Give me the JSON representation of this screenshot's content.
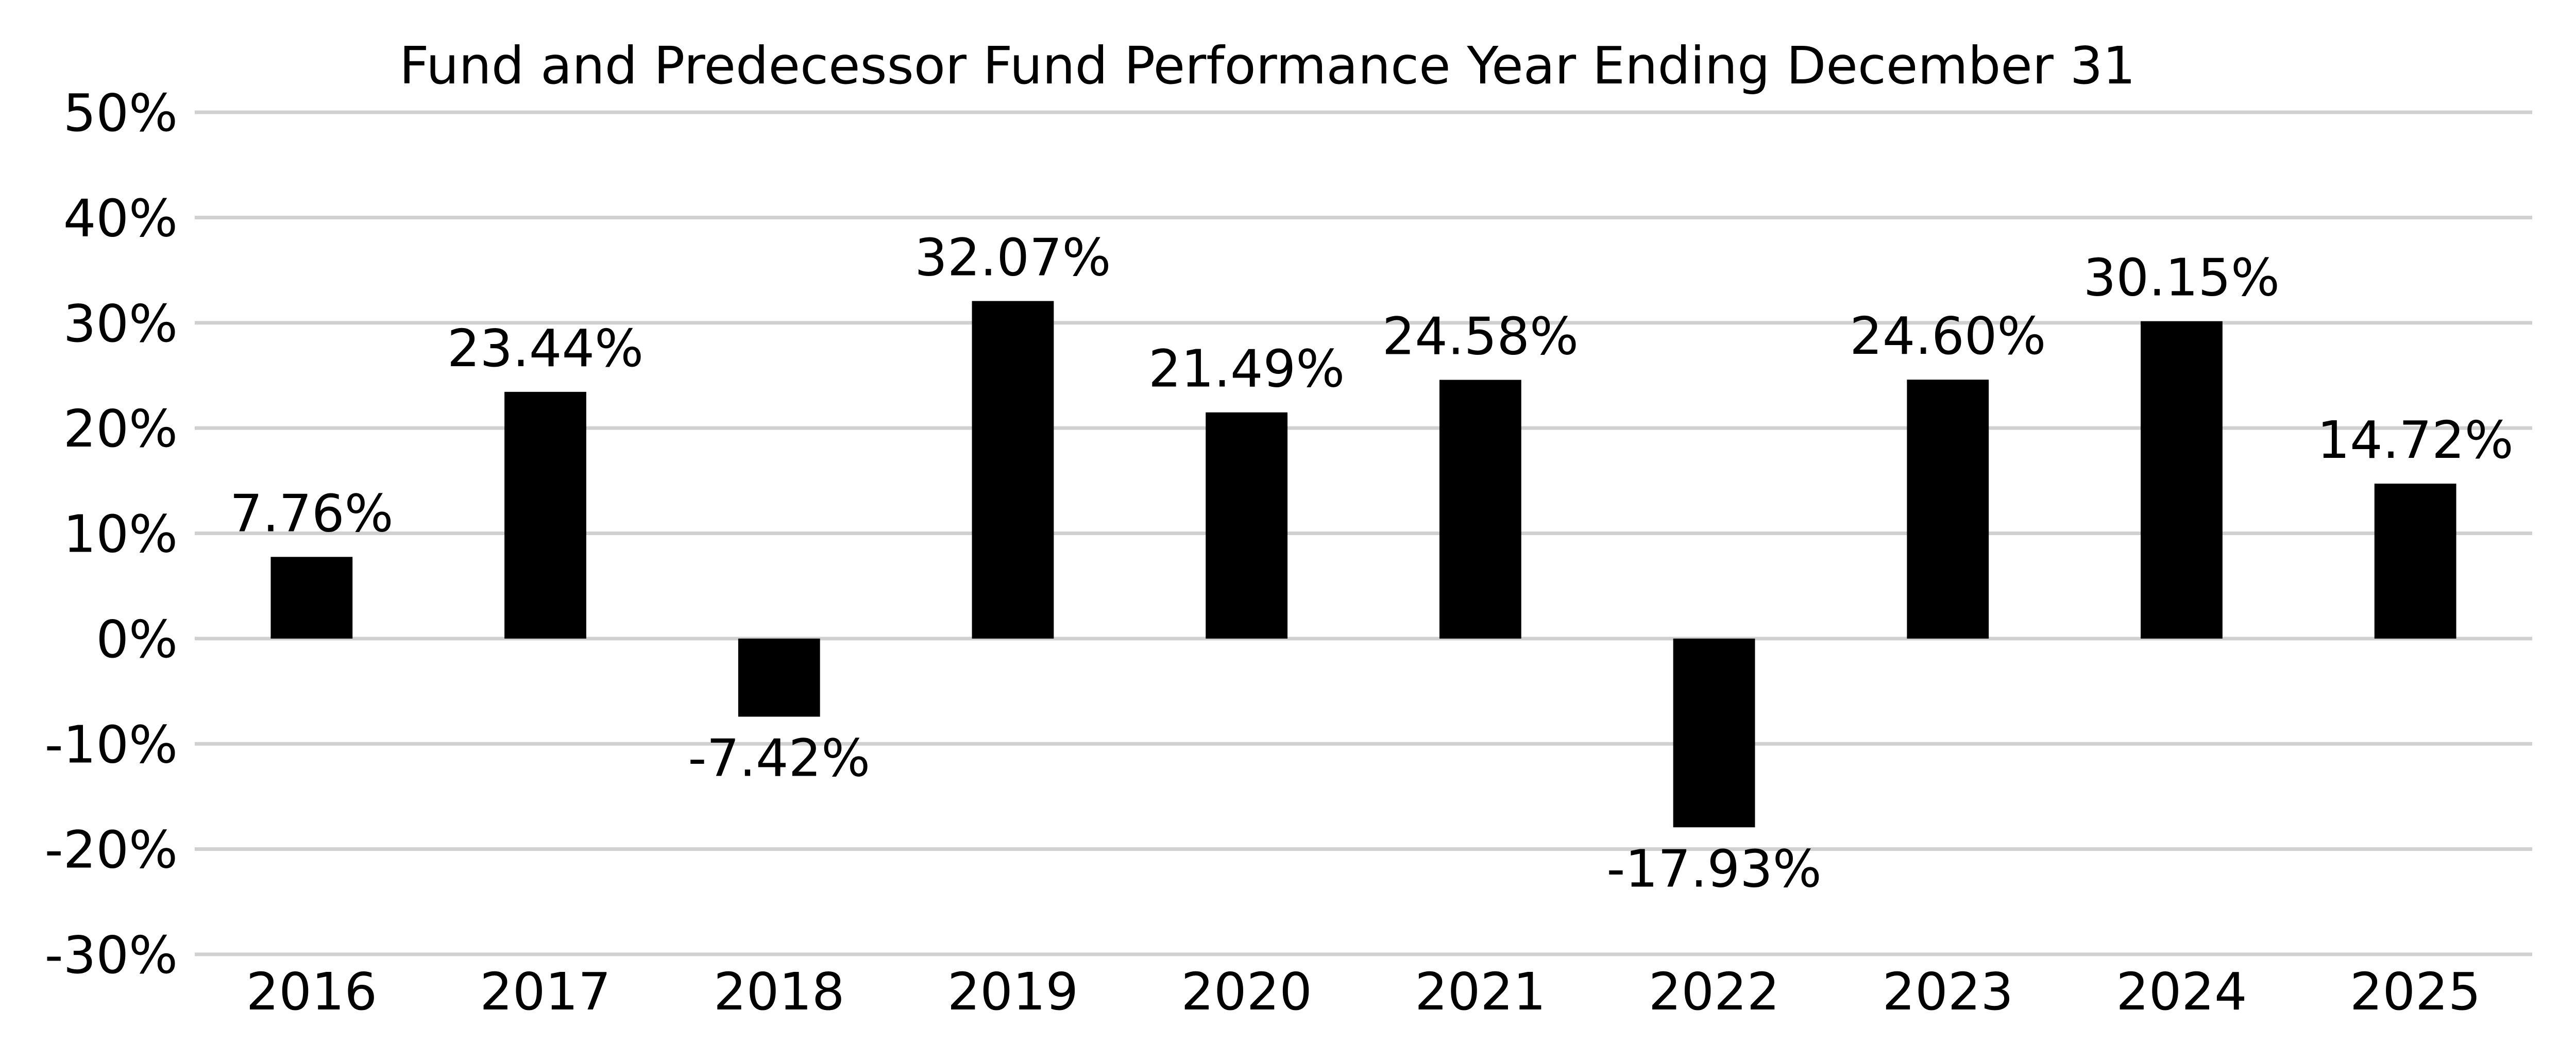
{
  "chart_data": {
    "type": "bar",
    "title": "Fund and Predecessor Fund Performance Year Ending December 31",
    "categories": [
      "2016",
      "2017",
      "2018",
      "2019",
      "2020",
      "2021",
      "2022",
      "2023",
      "2024",
      "2025"
    ],
    "values": [
      7.76,
      23.44,
      -7.42,
      32.07,
      21.49,
      24.58,
      -17.93,
      24.6,
      30.15,
      14.72
    ],
    "value_labels": [
      "7.76%",
      "23.44%",
      "-7.42%",
      "32.07%",
      "21.49%",
      "24.58%",
      "-17.93%",
      "24.60%",
      "30.15%",
      "14.72%"
    ],
    "ylim": [
      -30,
      50
    ],
    "yticks": [
      50,
      40,
      30,
      20,
      10,
      0,
      -10,
      -20,
      -30
    ],
    "ytick_labels": [
      "50%",
      "40%",
      "30%",
      "20%",
      "10%",
      "0%",
      "-10%",
      "-20%",
      "-30%"
    ],
    "xlabel": "",
    "ylabel": "",
    "grid": "horizontal",
    "legend": "none",
    "bar_color": "#000000",
    "grid_color": "#d0d0d0"
  }
}
